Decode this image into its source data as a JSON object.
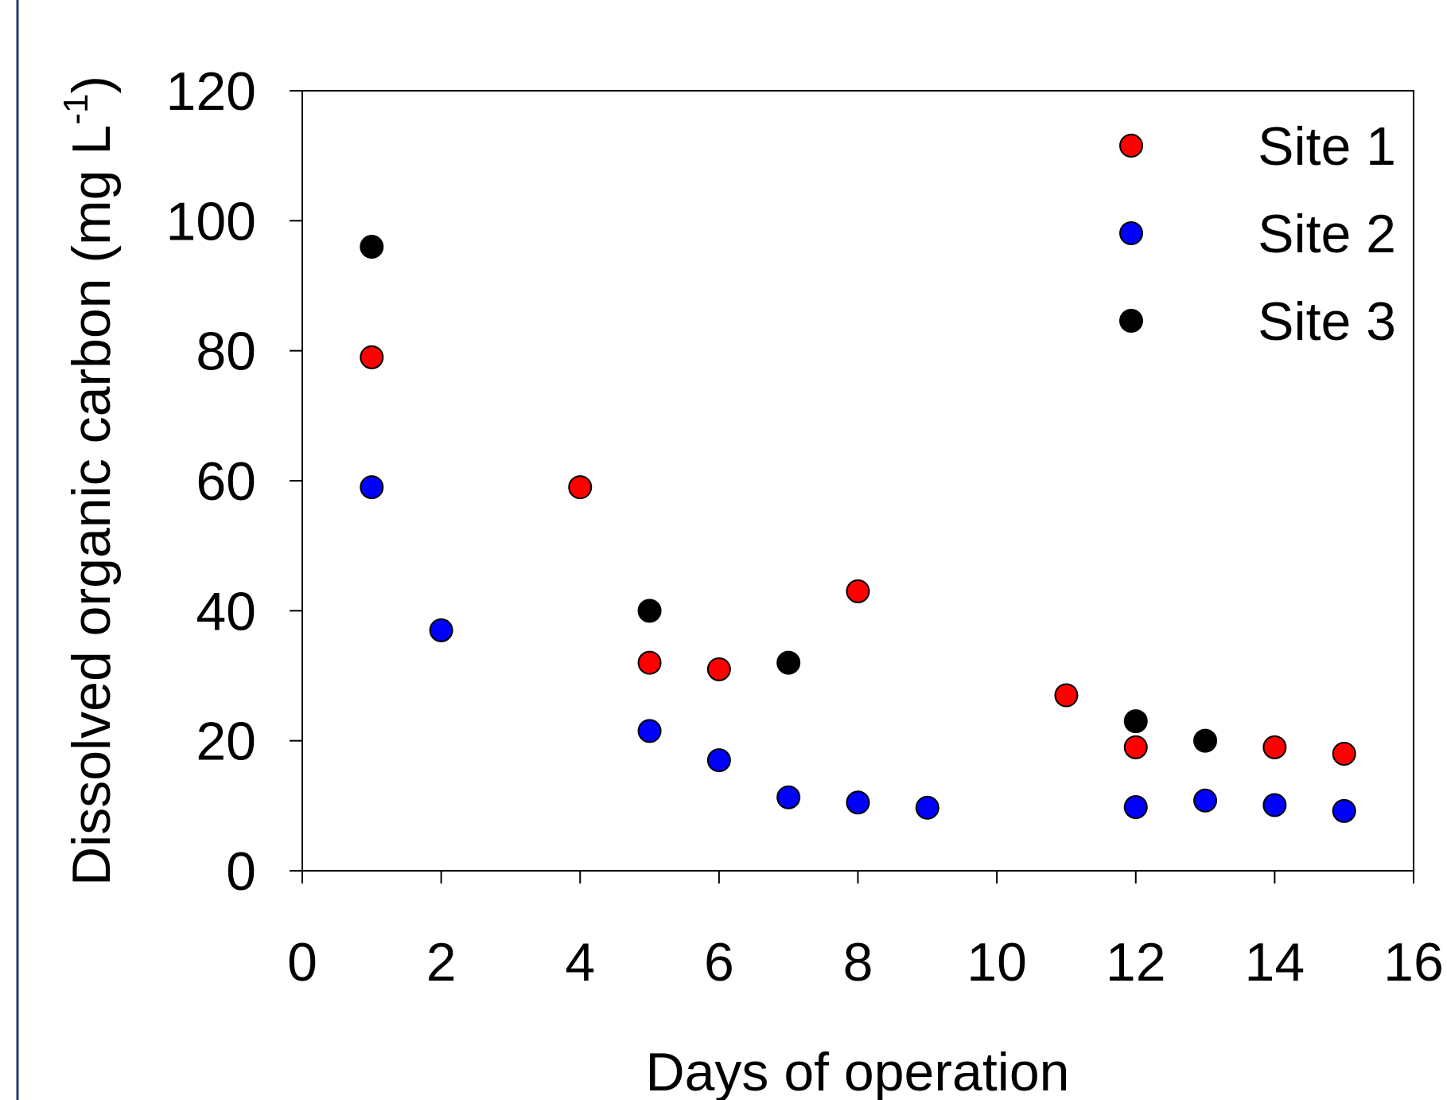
{
  "chart_data": {
    "type": "scatter",
    "title": "",
    "xlabel": "Days of operation",
    "ylabel_main": "Dissolved organic carbon (mg L",
    "ylabel_sup": "-1",
    "ylabel_close": ")",
    "xlim": [
      0,
      16
    ],
    "ylim": [
      0,
      120
    ],
    "x_ticks": [
      0,
      2,
      4,
      6,
      8,
      10,
      12,
      14,
      16
    ],
    "y_ticks": [
      0,
      20,
      40,
      60,
      80,
      100,
      120
    ],
    "grid": false,
    "legend_position": "top-right",
    "series": [
      {
        "name": "Site 1",
        "color": "#ff0000",
        "points": [
          [
            1,
            79
          ],
          [
            4,
            59
          ],
          [
            5,
            32
          ],
          [
            6,
            31
          ],
          [
            8,
            43
          ],
          [
            11,
            27
          ],
          [
            12,
            19
          ],
          [
            14,
            19
          ],
          [
            15,
            18
          ]
        ]
      },
      {
        "name": "Site 2",
        "color": "#0000ff",
        "points": [
          [
            1,
            59
          ],
          [
            2,
            37
          ],
          [
            5,
            21.5
          ],
          [
            6,
            17
          ],
          [
            7,
            11.3
          ],
          [
            8,
            10.5
          ],
          [
            9,
            9.7
          ],
          [
            12,
            9.8
          ],
          [
            13,
            10.8
          ],
          [
            14,
            10.1
          ],
          [
            15,
            9.2
          ]
        ]
      },
      {
        "name": "Site 3",
        "color": "#000000",
        "points": [
          [
            1,
            96
          ],
          [
            5,
            40
          ],
          [
            7,
            32
          ],
          [
            12,
            23
          ],
          [
            13,
            20
          ]
        ]
      }
    ]
  },
  "frame_color": "#1f3a6e"
}
